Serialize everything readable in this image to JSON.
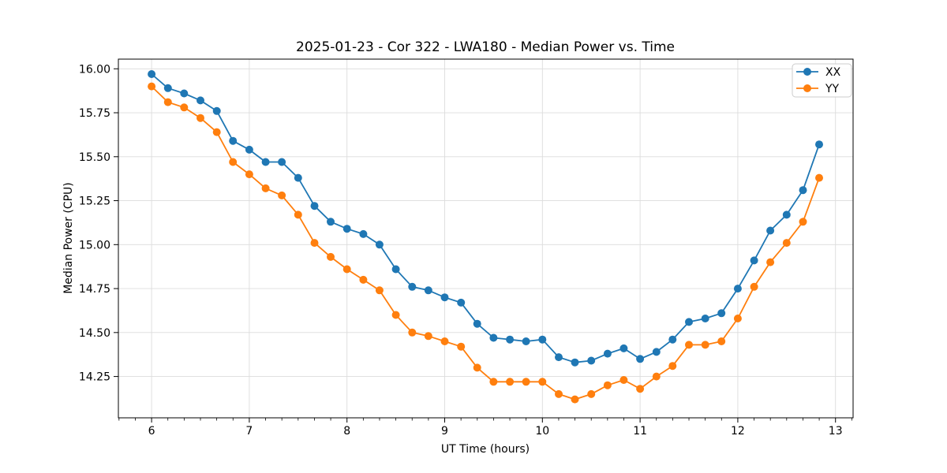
{
  "chart_data": {
    "type": "line",
    "title": "2025-01-23 - Cor 322 - LWA180 - Median Power vs. Time",
    "xlabel": "UT Time (hours)",
    "ylabel": "Median Power (CPU)",
    "xlim": [
      5.66,
      13.18
    ],
    "ylim": [
      14.015,
      16.055
    ],
    "x_major_ticks": [
      6,
      7,
      8,
      9,
      10,
      11,
      12,
      13
    ],
    "y_major_ticks": [
      14.25,
      14.5,
      14.75,
      15.0,
      15.25,
      15.5,
      15.75,
      16.0
    ],
    "x_minor_tick_step": 0.16667,
    "grid": true,
    "legend_position": "upper right",
    "x": [
      6.0,
      6.167,
      6.333,
      6.5,
      6.667,
      6.833,
      7.0,
      7.167,
      7.333,
      7.5,
      7.667,
      7.833,
      8.0,
      8.167,
      8.333,
      8.5,
      8.667,
      8.833,
      9.0,
      9.167,
      9.333,
      9.5,
      9.667,
      9.833,
      10.0,
      10.167,
      10.333,
      10.5,
      10.667,
      10.833,
      11.0,
      11.167,
      11.333,
      11.5,
      11.667,
      11.833,
      12.0,
      12.167,
      12.333,
      12.5,
      12.667,
      12.833
    ],
    "series": [
      {
        "name": "XX",
        "color": "#1f77b4",
        "marker": "circle",
        "values": [
          15.97,
          15.89,
          15.86,
          15.82,
          15.76,
          15.59,
          15.54,
          15.47,
          15.47,
          15.38,
          15.22,
          15.13,
          15.09,
          15.06,
          15.0,
          14.86,
          14.76,
          14.74,
          14.7,
          14.67,
          14.55,
          14.47,
          14.46,
          14.45,
          14.46,
          14.36,
          14.33,
          14.34,
          14.38,
          14.41,
          14.35,
          14.39,
          14.46,
          14.56,
          14.58,
          14.61,
          14.75,
          14.91,
          15.08,
          15.17,
          15.31,
          15.57
        ]
      },
      {
        "name": "YY",
        "color": "#ff7f0e",
        "marker": "circle",
        "values": [
          15.9,
          15.81,
          15.78,
          15.72,
          15.64,
          15.47,
          15.4,
          15.32,
          15.28,
          15.17,
          15.01,
          14.93,
          14.86,
          14.8,
          14.74,
          14.6,
          14.5,
          14.48,
          14.45,
          14.42,
          14.3,
          14.22,
          14.22,
          14.22,
          14.22,
          14.15,
          14.12,
          14.15,
          14.2,
          14.23,
          14.18,
          14.25,
          14.31,
          14.43,
          14.43,
          14.45,
          14.58,
          14.76,
          14.9,
          15.01,
          15.13,
          15.38
        ]
      }
    ],
    "style": {
      "grid_color": "#dcdcdc",
      "axis_color": "#000000",
      "background": "#ffffff",
      "legend_border": "#cccccc"
    }
  }
}
